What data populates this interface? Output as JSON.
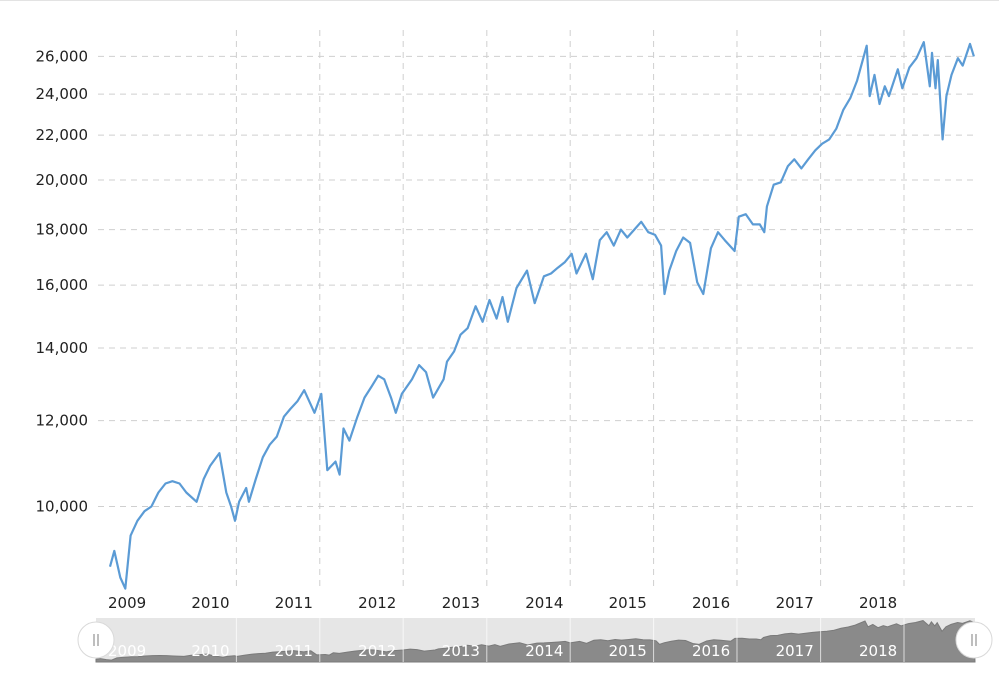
{
  "chart_data": {
    "type": "line",
    "title": "",
    "xlabel": "",
    "ylabel": "",
    "y_scale": "log",
    "ylim": [
      8500,
      27500
    ],
    "xlim": [
      "2009-01-01",
      "2018-12-31"
    ],
    "grid": true,
    "legend": "none",
    "colors": {
      "line": "#5b9bd5",
      "navigator_fill": "#8a8a8a",
      "navigator_bg": "#e6e6e6",
      "handle": "#ffffff"
    },
    "y_ticks": [
      {
        "value": 10000,
        "label": "10,000"
      },
      {
        "value": 12000,
        "label": "12,000"
      },
      {
        "value": 14000,
        "label": "14,000"
      },
      {
        "value": 16000,
        "label": "16,000"
      },
      {
        "value": 18000,
        "label": "18,000"
      },
      {
        "value": 20000,
        "label": "20,000"
      },
      {
        "value": 22000,
        "label": "22,000"
      },
      {
        "value": 24000,
        "label": "24,000"
      },
      {
        "value": 26000,
        "label": "26,000"
      }
    ],
    "x_ticks": [
      {
        "value": "2009-01-01",
        "label": "2009"
      },
      {
        "value": "2010-01-01",
        "label": "2010"
      },
      {
        "value": "2011-01-01",
        "label": "2011"
      },
      {
        "value": "2012-01-01",
        "label": "2012"
      },
      {
        "value": "2013-01-01",
        "label": "2013"
      },
      {
        "value": "2014-01-01",
        "label": "2014"
      },
      {
        "value": "2015-01-01",
        "label": "2015"
      },
      {
        "value": "2016-01-01",
        "label": "2016"
      },
      {
        "value": "2017-01-01",
        "label": "2017"
      },
      {
        "value": "2018-01-01",
        "label": "2018"
      }
    ],
    "navigator_labels": [
      "2009",
      "2010",
      "2011",
      "2012",
      "2013",
      "2014",
      "2015",
      "2016",
      "2017",
      "2018"
    ],
    "series": [
      {
        "points": [
          [
            "2009-01-01",
            8800
          ],
          [
            "2009-01-20",
            9100
          ],
          [
            "2009-02-15",
            8600
          ],
          [
            "2009-03-09",
            8400
          ],
          [
            "2009-04-01",
            9400
          ],
          [
            "2009-05-01",
            9700
          ],
          [
            "2009-06-01",
            9900
          ],
          [
            "2009-07-01",
            10000
          ],
          [
            "2009-08-01",
            10300
          ],
          [
            "2009-09-01",
            10500
          ],
          [
            "2009-10-01",
            10550
          ],
          [
            "2009-11-01",
            10500
          ],
          [
            "2009-12-01",
            10300
          ],
          [
            "2010-01-15",
            10100
          ],
          [
            "2010-02-15",
            10600
          ],
          [
            "2010-03-15",
            10900
          ],
          [
            "2010-04-25",
            11200
          ],
          [
            "2010-05-25",
            10300
          ],
          [
            "2010-06-15",
            10000
          ],
          [
            "2010-07-02",
            9700
          ],
          [
            "2010-07-20",
            10100
          ],
          [
            "2010-08-20",
            10400
          ],
          [
            "2010-09-01",
            10100
          ],
          [
            "2010-10-01",
            10600
          ],
          [
            "2010-11-01",
            11100
          ],
          [
            "2010-12-01",
            11400
          ],
          [
            "2011-01-01",
            11600
          ],
          [
            "2011-02-01",
            12100
          ],
          [
            "2011-03-01",
            12300
          ],
          [
            "2011-04-01",
            12500
          ],
          [
            "2011-05-01",
            12800
          ],
          [
            "2011-06-15",
            12200
          ],
          [
            "2011-07-15",
            12700
          ],
          [
            "2011-08-10",
            10800
          ],
          [
            "2011-09-15",
            11000
          ],
          [
            "2011-10-03",
            10700
          ],
          [
            "2011-10-20",
            11800
          ],
          [
            "2011-11-15",
            11500
          ],
          [
            "2011-12-20",
            12100
          ],
          [
            "2012-01-20",
            12600
          ],
          [
            "2012-02-20",
            12900
          ],
          [
            "2012-03-20",
            13200
          ],
          [
            "2012-04-15",
            13100
          ],
          [
            "2012-05-15",
            12600
          ],
          [
            "2012-06-05",
            12200
          ],
          [
            "2012-07-01",
            12700
          ],
          [
            "2012-08-15",
            13100
          ],
          [
            "2012-09-15",
            13500
          ],
          [
            "2012-10-15",
            13300
          ],
          [
            "2012-11-15",
            12600
          ],
          [
            "2012-12-31",
            13100
          ],
          [
            "2013-01-15",
            13600
          ],
          [
            "2013-02-15",
            13900
          ],
          [
            "2013-03-15",
            14400
          ],
          [
            "2013-04-15",
            14600
          ],
          [
            "2013-05-20",
            15300
          ],
          [
            "2013-06-20",
            14800
          ],
          [
            "2013-07-20",
            15500
          ],
          [
            "2013-08-20",
            14900
          ],
          [
            "2013-09-15",
            15600
          ],
          [
            "2013-10-08",
            14800
          ],
          [
            "2013-11-15",
            15900
          ],
          [
            "2013-12-31",
            16500
          ],
          [
            "2014-02-03",
            15400
          ],
          [
            "2014-03-15",
            16300
          ],
          [
            "2014-04-15",
            16400
          ],
          [
            "2014-05-15",
            16600
          ],
          [
            "2014-06-15",
            16800
          ],
          [
            "2014-07-15",
            17100
          ],
          [
            "2014-08-05",
            16400
          ],
          [
            "2014-09-15",
            17100
          ],
          [
            "2014-10-15",
            16200
          ],
          [
            "2014-11-15",
            17600
          ],
          [
            "2014-12-15",
            17900
          ],
          [
            "2015-01-15",
            17400
          ],
          [
            "2015-02-15",
            18000
          ],
          [
            "2015-03-15",
            17700
          ],
          [
            "2015-04-15",
            18000
          ],
          [
            "2015-05-15",
            18300
          ],
          [
            "2015-06-15",
            17900
          ],
          [
            "2015-07-15",
            17800
          ],
          [
            "2015-08-10",
            17400
          ],
          [
            "2015-08-25",
            15700
          ],
          [
            "2015-09-15",
            16500
          ],
          [
            "2015-10-15",
            17200
          ],
          [
            "2015-11-15",
            17700
          ],
          [
            "2015-12-15",
            17500
          ],
          [
            "2016-01-15",
            16100
          ],
          [
            "2016-02-11",
            15700
          ],
          [
            "2016-03-15",
            17300
          ],
          [
            "2016-04-15",
            17900
          ],
          [
            "2016-05-15",
            17600
          ],
          [
            "2016-06-27",
            17200
          ],
          [
            "2016-07-15",
            18500
          ],
          [
            "2016-08-15",
            18600
          ],
          [
            "2016-09-15",
            18200
          ],
          [
            "2016-10-15",
            18200
          ],
          [
            "2016-11-04",
            17900
          ],
          [
            "2016-11-15",
            18900
          ],
          [
            "2016-12-15",
            19800
          ],
          [
            "2017-01-15",
            19900
          ],
          [
            "2017-02-15",
            20600
          ],
          [
            "2017-03-15",
            20900
          ],
          [
            "2017-04-15",
            20500
          ],
          [
            "2017-05-15",
            20900
          ],
          [
            "2017-06-15",
            21300
          ],
          [
            "2017-07-15",
            21600
          ],
          [
            "2017-08-15",
            21800
          ],
          [
            "2017-09-15",
            22300
          ],
          [
            "2017-10-15",
            23200
          ],
          [
            "2017-11-15",
            23800
          ],
          [
            "2017-12-15",
            24700
          ],
          [
            "2018-01-26",
            26600
          ],
          [
            "2018-02-08",
            23900
          ],
          [
            "2018-03-01",
            25000
          ],
          [
            "2018-03-23",
            23500
          ],
          [
            "2018-04-15",
            24400
          ],
          [
            "2018-05-03",
            23900
          ],
          [
            "2018-06-11",
            25300
          ],
          [
            "2018-07-01",
            24300
          ],
          [
            "2018-08-01",
            25400
          ],
          [
            "2018-09-01",
            25900
          ],
          [
            "2018-10-03",
            26800
          ],
          [
            "2018-10-29",
            24400
          ],
          [
            "2018-11-08",
            26200
          ],
          [
            "2018-11-23",
            24300
          ],
          [
            "2018-12-03",
            25800
          ],
          [
            "2018-12-24",
            21800
          ],
          [
            "2019-01-10",
            23900
          ],
          [
            "2019-02-01",
            25000
          ],
          [
            "2019-03-01",
            25900
          ],
          [
            "2019-03-22",
            25500
          ],
          [
            "2019-04-23",
            26700
          ],
          [
            "2019-05-10",
            26000
          ]
        ]
      }
    ]
  }
}
